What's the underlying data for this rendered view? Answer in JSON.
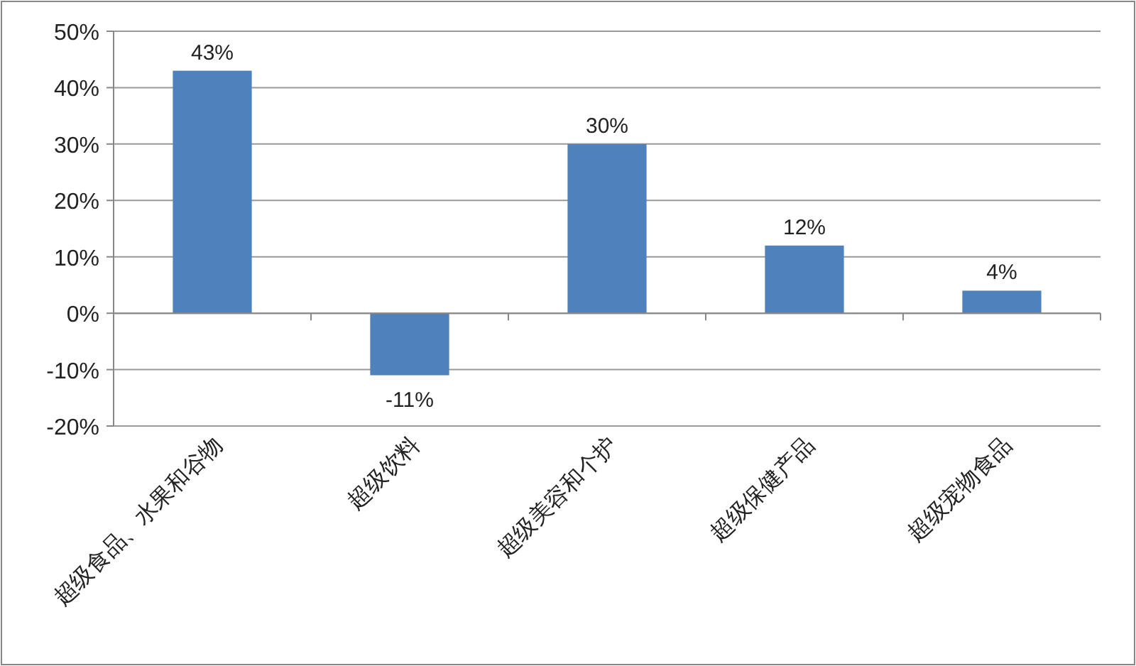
{
  "chart_data": {
    "type": "bar",
    "categories": [
      "超级食品、水果和谷物",
      "超级饮料",
      "超级美容和个护",
      "超级保健产品",
      "超级宠物食品"
    ],
    "values": [
      43,
      -11,
      30,
      12,
      4
    ],
    "value_labels": [
      "43%",
      "-11%",
      "30%",
      "12%",
      "4%"
    ],
    "color": "#4f81bd",
    "ylim": [
      -20,
      50
    ],
    "yticks": [
      {
        "value": -20,
        "label": "-20%"
      },
      {
        "value": -10,
        "label": "-10%"
      },
      {
        "value": 0,
        "label": "0%"
      },
      {
        "value": 10,
        "label": "10%"
      },
      {
        "value": 20,
        "label": "20%"
      },
      {
        "value": 30,
        "label": "30%"
      },
      {
        "value": 40,
        "label": "40%"
      },
      {
        "value": 50,
        "label": "50%"
      }
    ],
    "grid": "y"
  }
}
